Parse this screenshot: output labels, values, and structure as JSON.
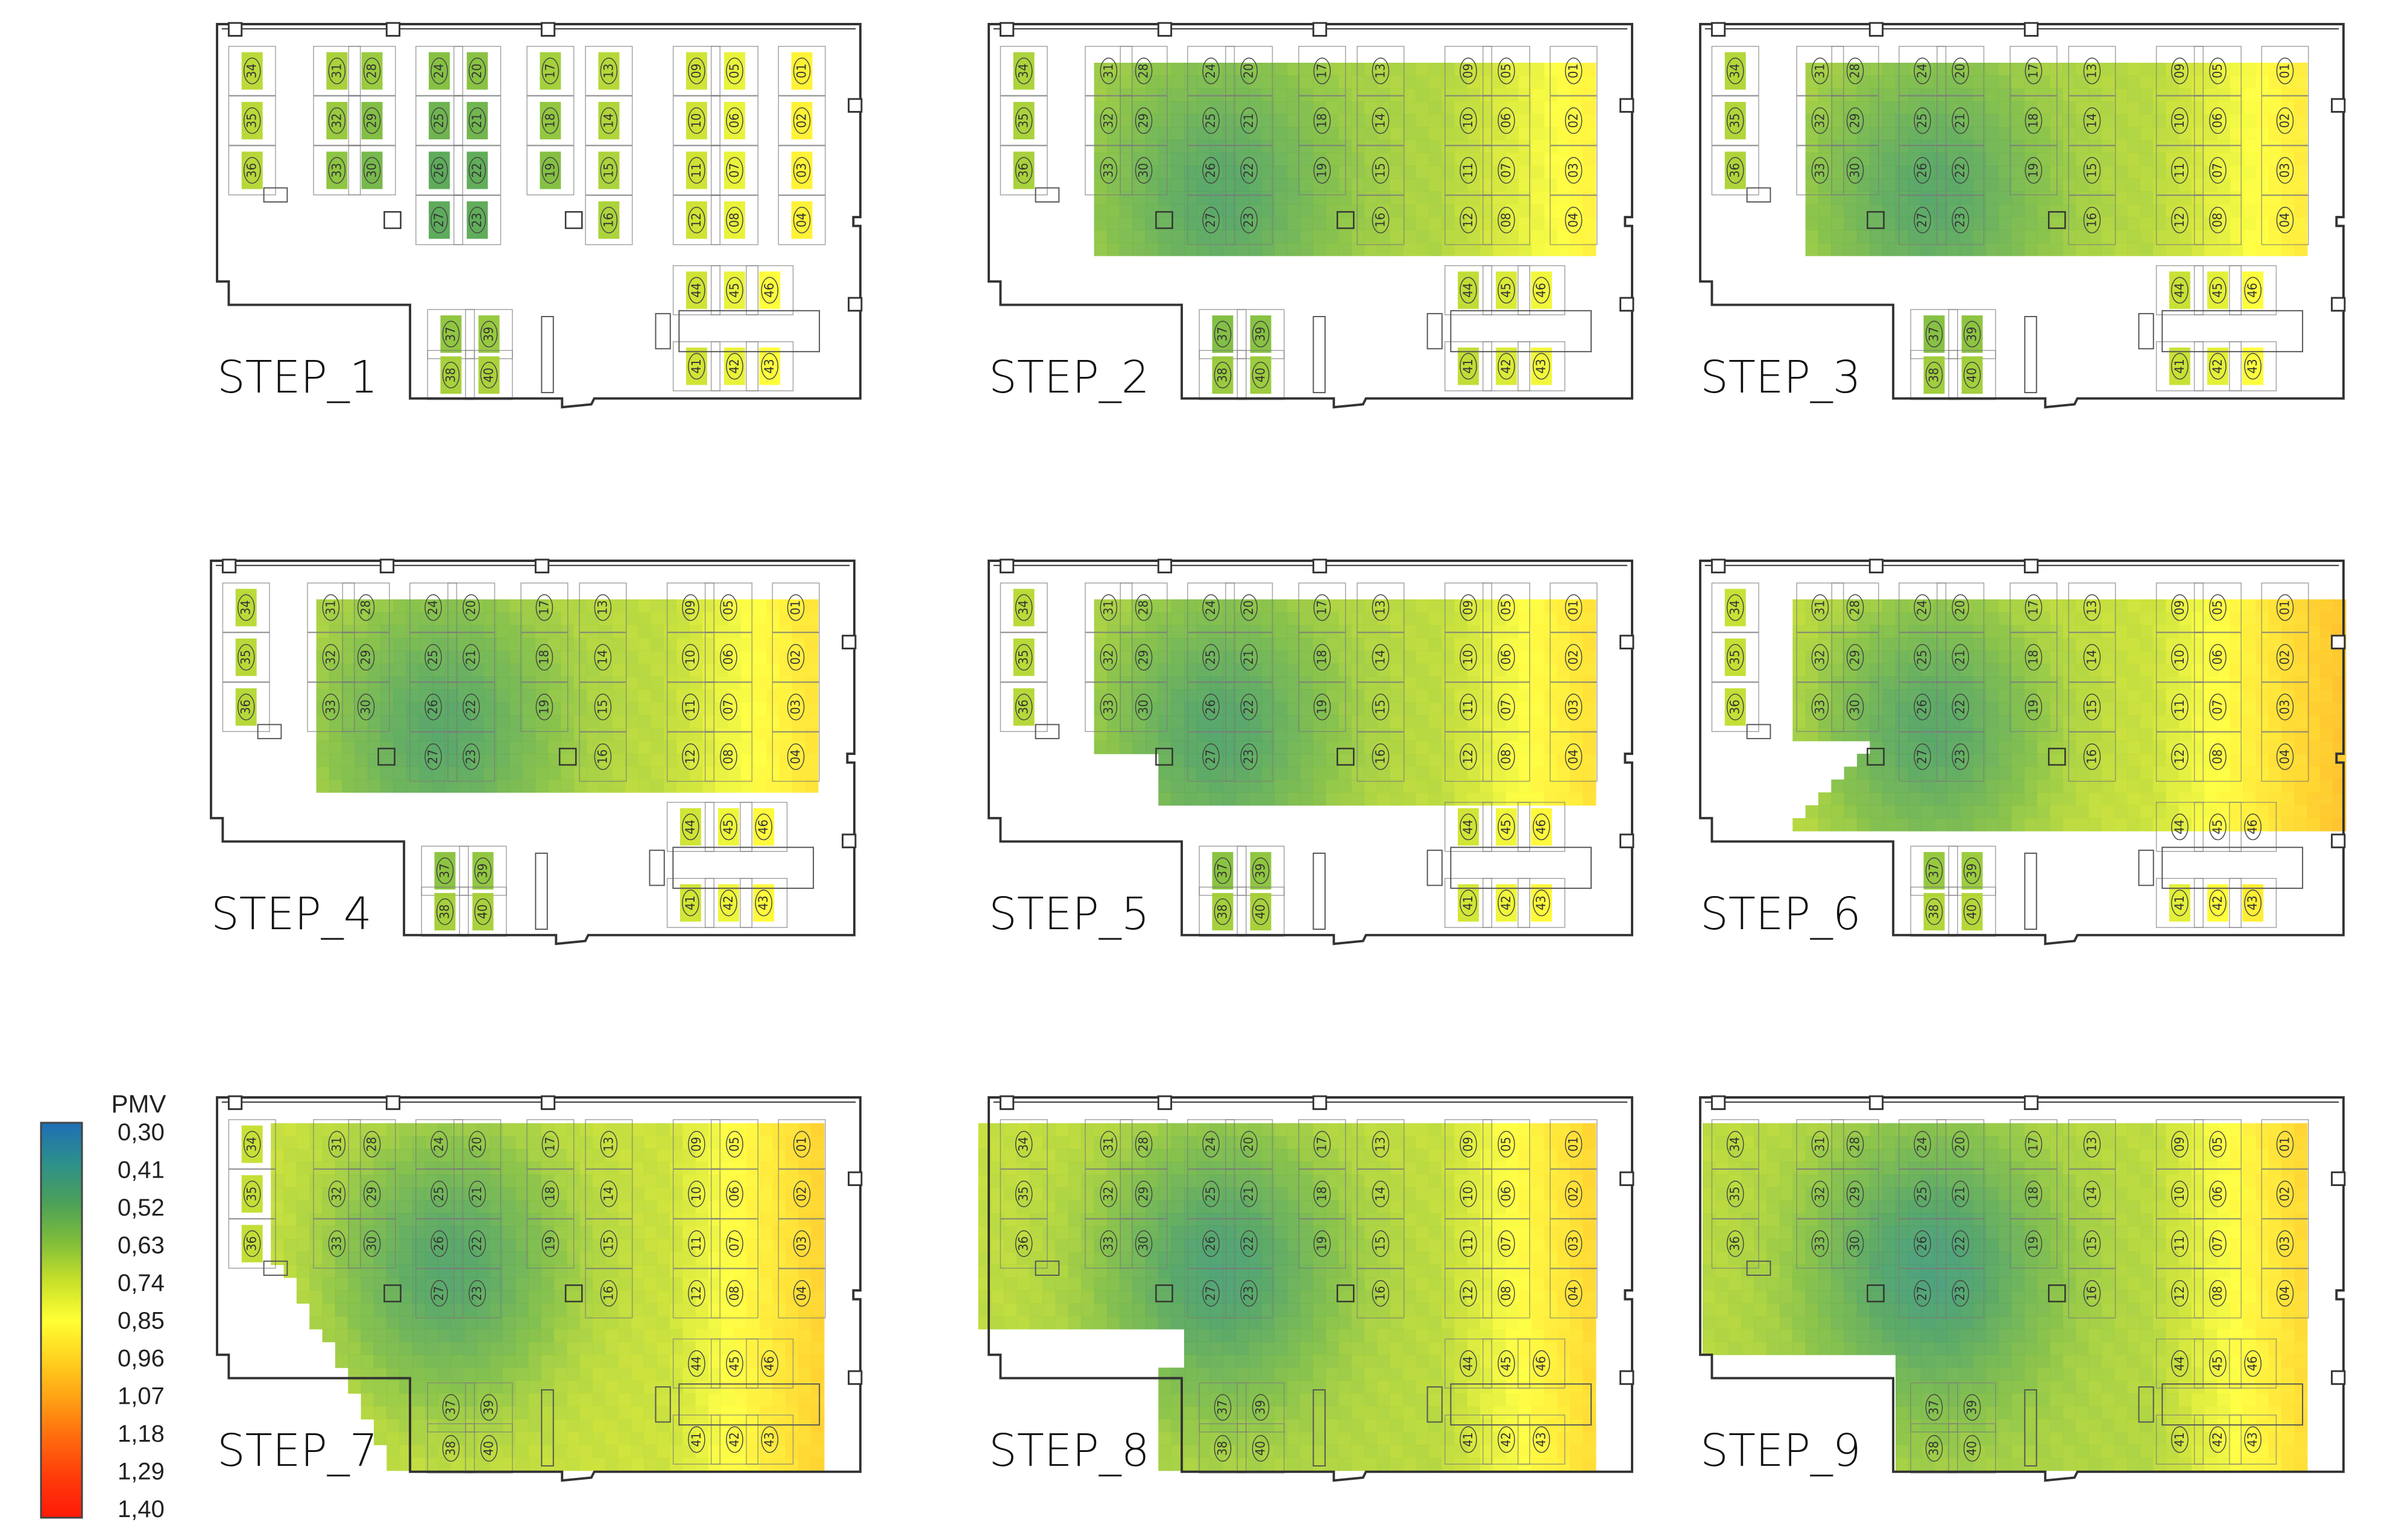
{
  "legend": {
    "title": "PMV",
    "ticks": [
      "0,30",
      "0,41",
      "0,52",
      "0,63",
      "0,74",
      "0,85",
      "0,96",
      "1,07",
      "1,18",
      "1,29",
      "1,40"
    ],
    "gradient_colors": [
      "#1e6fb6",
      "#2d8f8c",
      "#4aa05a",
      "#7ebd3a",
      "#c8e02a",
      "#ffff33",
      "#ffd21e",
      "#ffa014",
      "#ff6a0e",
      "#ff3a0a",
      "#ff1a08"
    ]
  },
  "steps": [
    {
      "label": "STEP_1"
    },
    {
      "label": "STEP_2"
    },
    {
      "label": "STEP_3"
    },
    {
      "label": "STEP_4"
    },
    {
      "label": "STEP_5"
    },
    {
      "label": "STEP_6"
    },
    {
      "label": "STEP_7"
    },
    {
      "label": "STEP_8"
    },
    {
      "label": "STEP_9"
    }
  ],
  "seats": [
    "01",
    "02",
    "03",
    "04",
    "05",
    "06",
    "07",
    "08",
    "09",
    "10",
    "11",
    "12",
    "13",
    "14",
    "15",
    "16",
    "17",
    "18",
    "19",
    "20",
    "21",
    "22",
    "23",
    "24",
    "25",
    "26",
    "27",
    "28",
    "29",
    "30",
    "31",
    "32",
    "33",
    "34",
    "35",
    "36",
    "37",
    "38",
    "39",
    "40",
    "41",
    "42",
    "43",
    "44",
    "45",
    "46"
  ]
}
